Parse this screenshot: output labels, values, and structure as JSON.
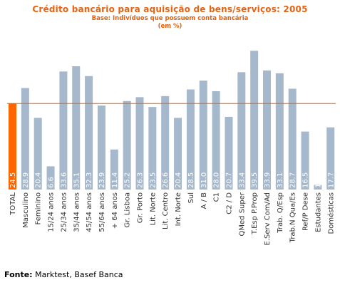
{
  "header": {
    "title": "Crédito bancário para aquisição de bens/serviços: 2005",
    "subtitle": "Base: Indivíduos que possuem conta bancária",
    "unit": "(em %)"
  },
  "source": {
    "label": "Fonte:",
    "text": "Marktest, Basef Banca"
  },
  "colors": {
    "bar": "#a6b8cc",
    "highlight": "#ff6600",
    "reference_line": "#e8620f",
    "title": "#e8620f",
    "value_label": "#ffffff",
    "category_label": "#333333"
  },
  "chart_data": {
    "type": "bar",
    "title": "Crédito bancário para aquisição de bens/serviços: 2005",
    "xlabel": "",
    "ylabel": "",
    "ylim": [
      0,
      42
    ],
    "grid": false,
    "legend": "none",
    "reference_line": 24.5,
    "highlight_category": "TOTAL",
    "categories": [
      "TOTAL",
      "Masculino",
      "Feminino",
      "15/24 anos",
      "25/34 anos",
      "35/44 anos",
      "45/54 anos",
      "55/64 anos",
      "+ 64 anos",
      "Gr. Lisboa",
      "Gr. Porto",
      "Lit. Norte",
      "Lit. Centro",
      "Int. Norte",
      "Sul",
      "A / B",
      "C1",
      "C2 / D",
      "QMed Super",
      "T.Esp P.Prop",
      "E.Serv Com/Ad",
      "Trab. Q/Esp",
      "Trab.N Qua/Es",
      "Ref/P Dese",
      "Estudantes",
      "Domésticas"
    ],
    "values": [
      24.5,
      28.9,
      20.4,
      6.6,
      33.6,
      35.1,
      32.3,
      23.9,
      11.4,
      25.2,
      26.3,
      23.5,
      26.6,
      20.4,
      28.5,
      31.0,
      28.0,
      20.7,
      33.4,
      39.5,
      33.9,
      33.1,
      28.7,
      16.5,
      1.3,
      17.7
    ],
    "value_labels": [
      "24.5",
      "28.9",
      "20.4",
      "6.6",
      "33.6",
      "35.1",
      "32.3",
      "23.9",
      "11.4",
      "25.2",
      "26.3",
      "23.5",
      "26.6",
      "20.4",
      "28.5",
      "31.0",
      "28.0",
      "20.7",
      "33.4",
      "39.5",
      "33.9",
      "33.1",
      "28.7",
      "16.5",
      "1.3",
      "17.7"
    ]
  }
}
